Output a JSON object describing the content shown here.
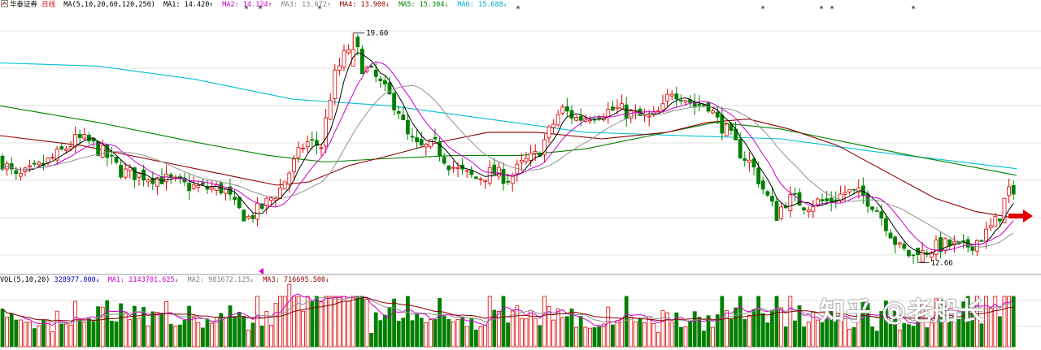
{
  "price_panel": {
    "stock_name": "华泰证券",
    "period": "日线",
    "indicator": "MA(5,10,20,60,120,250)",
    "items": [
      {
        "label": "MA1:",
        "value": "14.420",
        "dir": "↑",
        "color": "#000000"
      },
      {
        "label": "MA2:",
        "value": "14.124",
        "dir": "↑",
        "color": "#cc00cc"
      },
      {
        "label": "MA3:",
        "value": "13.672",
        "dir": "↑",
        "color": "#808080"
      },
      {
        "label": "MA4:",
        "value": "13.900",
        "dir": "↓",
        "color": "#8b0000"
      },
      {
        "label": "MA5:",
        "value": "15.304",
        "dir": "↓",
        "color": "#008000"
      },
      {
        "label": "MA6:",
        "value": "15.688",
        "dir": "↓",
        "color": "#00b0c0"
      }
    ]
  },
  "volume_panel": {
    "indicator": "VOL(5,10,20)",
    "value": "328977.000",
    "value_dir": "↓",
    "items": [
      {
        "label": "MA1:",
        "value": "1143701.625",
        "dir": "↓",
        "color": "#cc00cc"
      },
      {
        "label": "MA2:",
        "value": "981672.125",
        "dir": "↓",
        "color": "#808080"
      },
      {
        "label": "MA3:",
        "value": "716695.500",
        "dir": "↓",
        "color": "#8b0000"
      }
    ]
  },
  "watermark": "知乎 @老船长",
  "colors": {
    "up": "#e00000",
    "down": "#008000",
    "grid": "#c8c8c8",
    "ma5": "#000000",
    "ma10": "#cc00cc",
    "ma20": "#909090",
    "ma60": "#8b0000",
    "ma120": "#008000",
    "ma250": "#00c0d0",
    "arrow": "#e00000"
  },
  "chart_data": [
    {
      "type": "candlestick",
      "title": "华泰证券 日线",
      "price_range": [
        12.3,
        20.6
      ],
      "annotations": [
        {
          "label": "19.60",
          "type": "high",
          "value": 19.6
        },
        {
          "label": "12.66",
          "type": "low",
          "value": 12.66
        }
      ],
      "ma_latest": {
        "MA5": 14.42,
        "MA10": 14.124,
        "MA20": 13.672,
        "MA60": 13.9,
        "MA120": 15.304,
        "MA250": 15.688
      },
      "grid": true
    },
    {
      "type": "bar",
      "title": "VOL(5,10,20)",
      "latest_volume": 328977.0,
      "ma_latest": {
        "MA5": 1143701.625,
        "MA10": 981672.125,
        "MA20": 716695.5
      },
      "grid": true
    }
  ]
}
